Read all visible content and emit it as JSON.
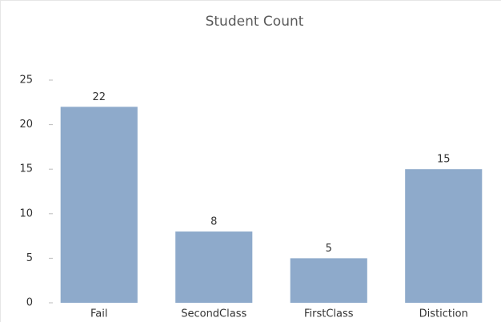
{
  "chart_data": {
    "type": "bar",
    "title": "Student Count",
    "categories": [
      "Fail",
      "SecondClass",
      "FirstClass",
      "Distiction"
    ],
    "values": [
      22,
      8,
      5,
      15
    ],
    "color": "#8eaacb",
    "ylim": [
      0,
      25
    ],
    "yticks": [
      0,
      5,
      10,
      15,
      20,
      25
    ],
    "grid": false
  }
}
